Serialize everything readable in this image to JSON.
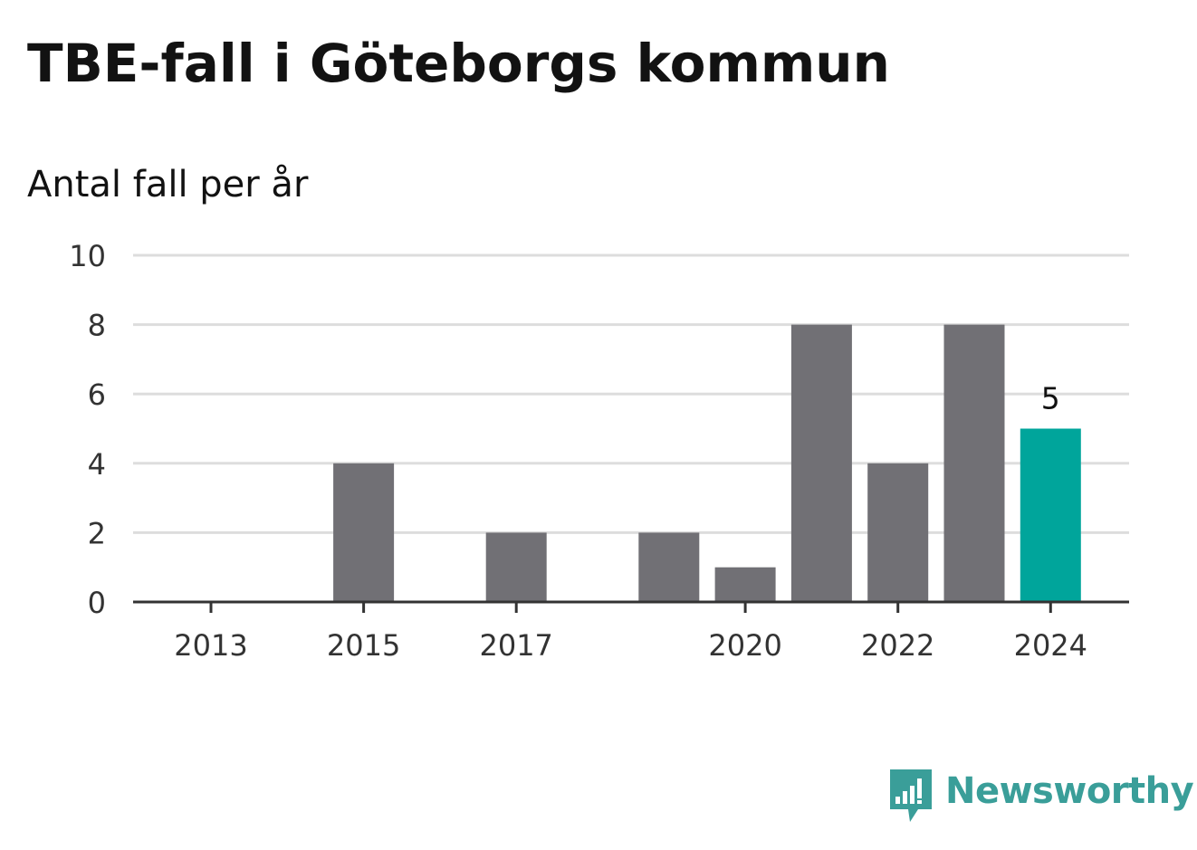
{
  "header": {
    "title": "TBE-fall i Göteborgs kommun",
    "subtitle": "Antal fall per år"
  },
  "brand": {
    "name": "Newsworthy",
    "logo_icon": "newsworthy-chart-bubble-icon",
    "color": "#3a9e99"
  },
  "colors": {
    "bar": "#717075",
    "highlight": "#00a59b",
    "grid": "#dddddd",
    "axis": "#333333"
  },
  "chart_data": {
    "type": "bar",
    "categories": [
      "2013",
      "2014",
      "2015",
      "2016",
      "2017",
      "2018",
      "2019",
      "2020",
      "2021",
      "2022",
      "2023",
      "2024"
    ],
    "values": [
      0,
      0,
      4,
      0,
      2,
      0,
      2,
      1,
      8,
      4,
      8,
      5
    ],
    "x_tick_labels": [
      "2013",
      "2015",
      "2017",
      "2020",
      "2022",
      "2024"
    ],
    "y_ticks": [
      0,
      2,
      4,
      6,
      8,
      10
    ],
    "ylim": [
      0,
      10
    ],
    "highlight_category": "2024",
    "annotations": [
      {
        "category": "2024",
        "text": "5"
      }
    ],
    "grid": true,
    "legend": "none",
    "title": "TBE-fall i Göteborgs kommun",
    "ylabel": "Antal fall per år",
    "xlabel": ""
  }
}
